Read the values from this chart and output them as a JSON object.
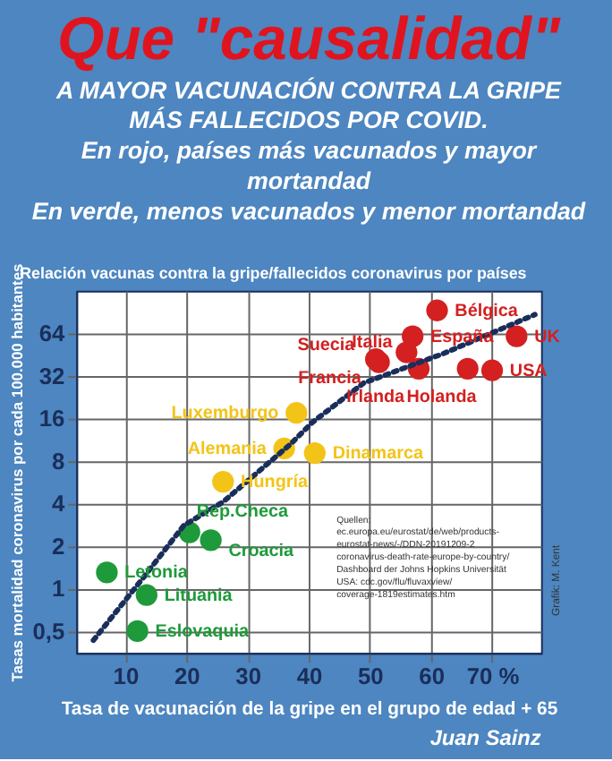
{
  "chart_data": {
    "type": "scatter",
    "title": "Que \"causalidad\"",
    "subtitle": "A MAYOR VACUNACIÓN CONTRA LA GRIPE\nMÁS FALLECIDOS POR COVID.\nEn rojo, países más vacunados y mayor\nmortandad\nEn verde, menos vacunados y menor mortandad",
    "xlabel": "Tasa de vacunación de la gripe en el grupo de edad + 65",
    "ylabel": "Tasas mortalidad coronavirus por cada 100.000 habitantes",
    "annotations": [
      "Relación vacunas contra la gripe/fallecidos coronavirus por países",
      "Quellen:\nec.europa.eu/eurostat/de/web/products-\neurostat-news/-/DDN-20191209-2\ncoronavirus-death-rate-europe-by-country/\nDashboard der Johns Hopkins Universität\nUSA: cdc.gov/flu/fluvaxview/\ncoverage-1819estimates.htm",
      "Grafik: M. Kent",
      "Juan Sainz"
    ],
    "xlim": [
      2,
      78
    ],
    "xticks": [
      10,
      20,
      30,
      40,
      50,
      60,
      {
        "value": 70,
        "label": "70 %"
      }
    ],
    "ylim": [
      0.35,
      128
    ],
    "yticks": [
      {
        "value": 0.5,
        "label": "0,5"
      },
      1,
      2,
      4,
      8,
      16,
      32,
      64
    ],
    "log": "y",
    "grid": true,
    "marker": "circle",
    "series": [
      {
        "name": "Suecia",
        "color": "#d42020",
        "x": [
          51
        ],
        "values": [
          42
        ]
      },
      {
        "name": "España",
        "color": "#d42020",
        "x": [
          57
        ],
        "values": [
          61
        ]
      },
      {
        "name": "Italia",
        "color": "#d42020",
        "x": [
          56
        ],
        "values": [
          47
        ]
      },
      {
        "name": "Bélgica",
        "color": "#d42020",
        "x": [
          61
        ],
        "values": [
          93
        ]
      },
      {
        "name": "Francia",
        "color": "#d42020",
        "x": [
          51.5
        ],
        "values": [
          40
        ]
      },
      {
        "name": "Irlanda",
        "color": "#d42020",
        "x": [
          58
        ],
        "values": [
          36
        ]
      },
      {
        "name": "UK",
        "color": "#d42020",
        "x": [
          74
        ],
        "values": [
          61
        ]
      },
      {
        "name": "USA",
        "color": "#d42020",
        "x": [
          70
        ],
        "values": [
          35
        ]
      },
      {
        "name": "Holanda",
        "color": "#d42020",
        "x": [
          66
        ],
        "values": [
          36
        ]
      },
      {
        "name": "Luxemburgo",
        "color": "#f2c418",
        "x": [
          38
        ],
        "values": [
          17.5
        ]
      },
      {
        "name": "Alemania",
        "color": "#f2c418",
        "x": [
          36
        ],
        "values": [
          9.8
        ]
      },
      {
        "name": "Dinamarca",
        "color": "#f2c418",
        "x": [
          41
        ],
        "values": [
          9.1
        ]
      },
      {
        "name": "Hungría",
        "color": "#f2c418",
        "x": [
          26
        ],
        "values": [
          5.7
        ]
      },
      {
        "name": "Rep.Checa",
        "color": "#1e9a3a",
        "x": [
          20.5
        ],
        "values": [
          2.5
        ]
      },
      {
        "name": "Croacia",
        "color": "#1e9a3a",
        "x": [
          24
        ],
        "values": [
          2.2
        ]
      },
      {
        "name": "Letonia",
        "color": "#1e9a3a",
        "x": [
          7
        ],
        "values": [
          1.3
        ]
      },
      {
        "name": "Lituania",
        "color": "#1e9a3a",
        "x": [
          13.5
        ],
        "values": [
          0.9
        ]
      },
      {
        "name": "Eslovaquia",
        "color": "#1e9a3a",
        "x": [
          12
        ],
        "values": [
          0.5
        ]
      },
      {
        "type": "line",
        "line_style": "dotted",
        "marker": "none",
        "color": "#1a2e5a",
        "x": [
          4.8,
          13,
          19.6,
          26,
          37,
          40.6,
          49,
          62,
          77
        ],
        "values": [
          0.43,
          1.2,
          2.8,
          4.1,
          10.5,
          15,
          28.5,
          46,
          87
        ]
      }
    ]
  }
}
